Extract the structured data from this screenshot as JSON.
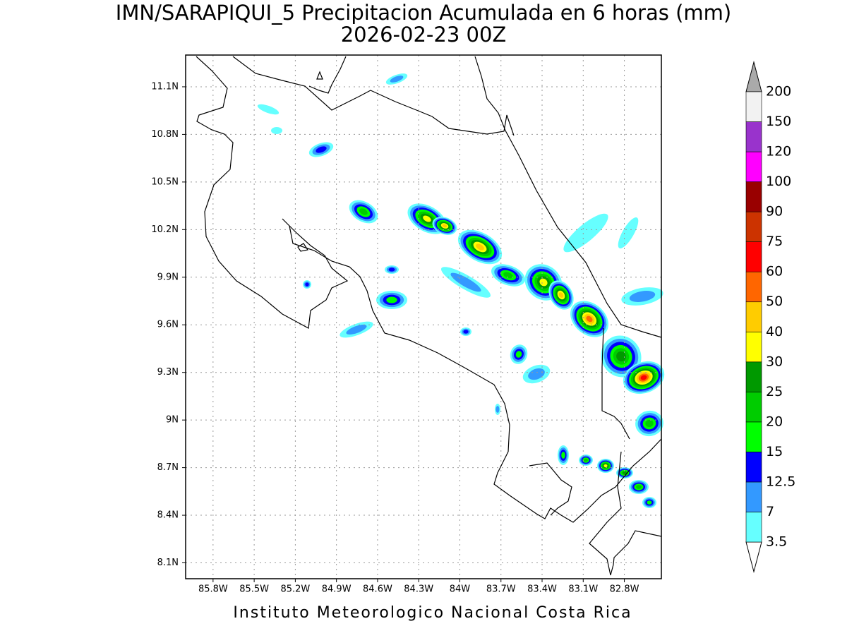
{
  "title": {
    "line1": "IMN/SARAPIQUI_5 Precipitacion Acumulada en 6 horas (mm)",
    "line2": "2026-02-23 00Z"
  },
  "map": {
    "lonlim": [
      -86.0,
      -82.53
    ],
    "latlim": [
      8.0,
      11.3
    ],
    "lon_ticks": [
      {
        "value": -85.8,
        "label": "85.8W"
      },
      {
        "value": -85.5,
        "label": "85.5W"
      },
      {
        "value": -85.2,
        "label": "85.2W"
      },
      {
        "value": -84.9,
        "label": "84.9W"
      },
      {
        "value": -84.6,
        "label": "84.6W"
      },
      {
        "value": -84.3,
        "label": "84.3W"
      },
      {
        "value": -84,
        "label": "84W"
      },
      {
        "value": -83.7,
        "label": "83.7W"
      },
      {
        "value": -83.4,
        "label": "83.4W"
      },
      {
        "value": -83.1,
        "label": "83.1W"
      },
      {
        "value": -82.8,
        "label": "82.8W"
      }
    ],
    "lat_ticks": [
      {
        "value": 8.1,
        "label": "8.1N"
      },
      {
        "value": 8.4,
        "label": "8.4N"
      },
      {
        "value": 8.7,
        "label": "8.7N"
      },
      {
        "value": 9,
        "label": "9N"
      },
      {
        "value": 9.3,
        "label": "9.3N"
      },
      {
        "value": 9.6,
        "label": "9.6N"
      },
      {
        "value": 9.9,
        "label": "9.9N"
      },
      {
        "value": 10.2,
        "label": "10.2N"
      },
      {
        "value": 10.5,
        "label": "10.5N"
      },
      {
        "value": 10.8,
        "label": "10.8N"
      },
      {
        "value": 11.1,
        "label": "11.1N"
      }
    ]
  },
  "colorbar": {
    "levels": [
      "3.5",
      "7",
      "12.5",
      "15",
      "20",
      "25",
      "30",
      "40",
      "50",
      "60",
      "75",
      "90",
      "100",
      "120",
      "150",
      "200"
    ],
    "colors": [
      "#66ffff",
      "#3399ff",
      "#0000ff",
      "#00ff00",
      "#00cc00",
      "#009900",
      "#ffff00",
      "#ffcc00",
      "#ff6600",
      "#ff0000",
      "#cc3300",
      "#990000",
      "#ff00ff",
      "#9933cc",
      "#f2f2f2"
    ],
    "over_color": "#aaaaaa",
    "under_color": "#ffffff"
  },
  "footer": "Instituto Meteorologico Nacional Costa Rica"
}
